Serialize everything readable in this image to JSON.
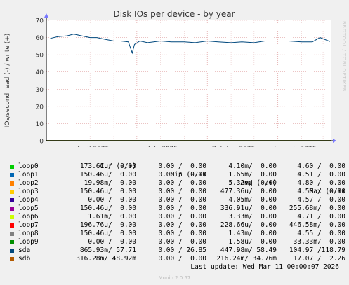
{
  "watermark": "RRDTOOL / TOBI OETIKER",
  "footer": "Munin 2.0.57",
  "last_update": "Last update: Wed Mar 11 00:00:07 2026",
  "legend": {
    "headers": [
      "Cur (-/+)",
      "Min (-/+)",
      "Avg (-/+)",
      "Max (-/+)"
    ],
    "rows": [
      {
        "name": "loop0",
        "color": "#00cc00",
        "cur": "173.61u/  0.00",
        "min": "0.00 /  0.00",
        "avg": "4.10m/  0.00",
        "max": "4.60 /  0.00"
      },
      {
        "name": "loop1",
        "color": "#0066b3",
        "cur": "150.46u/  0.00",
        "min": "0.00 /  0.00",
        "avg": "1.65m/  0.00",
        "max": "4.51 /  0.00"
      },
      {
        "name": "loop2",
        "color": "#ff8000",
        "cur": "19.98m/  0.00",
        "min": "0.00 /  0.00",
        "avg": "5.32m/  0.00",
        "max": "4.80 /  0.00"
      },
      {
        "name": "loop3",
        "color": "#ffcc00",
        "cur": "150.46u/  0.00",
        "min": "0.00 /  0.00",
        "avg": "477.36u/  0.00",
        "max": "4.58 /  0.00"
      },
      {
        "name": "loop4",
        "color": "#330099",
        "cur": "0.00 /  0.00",
        "min": "0.00 /  0.00",
        "avg": "4.05m/  0.00",
        "max": "4.57 /  0.00"
      },
      {
        "name": "loop5",
        "color": "#990099",
        "cur": "150.46u/  0.00",
        "min": "0.00 /  0.00",
        "avg": "336.91u/  0.00",
        "max": "255.68m/  0.00"
      },
      {
        "name": "loop6",
        "color": "#ccff00",
        "cur": "1.61m/  0.00",
        "min": "0.00 /  0.00",
        "avg": "3.33m/  0.00",
        "max": "4.71 /  0.00"
      },
      {
        "name": "loop7",
        "color": "#ff0000",
        "cur": "196.76u/  0.00",
        "min": "0.00 /  0.00",
        "avg": "228.66u/  0.00",
        "max": "446.58m/  0.00"
      },
      {
        "name": "loop8",
        "color": "#808080",
        "cur": "150.46u/  0.00",
        "min": "0.00 /  0.00",
        "avg": "1.43m/  0.00",
        "max": "4.55 /  0.00"
      },
      {
        "name": "loop9",
        "color": "#008f00",
        "cur": "0.00 /  0.00",
        "min": "0.00 /  0.00",
        "avg": "1.58u/  0.00",
        "max": "33.33m/  0.00"
      },
      {
        "name": "sda",
        "color": "#00487d",
        "cur": "865.93m/ 57.71",
        "min": "0.00 / 26.85",
        "avg": "447.98m/ 58.49",
        "max": "104.97 /118.79"
      },
      {
        "name": "sdb",
        "color": "#b35a00",
        "cur": "316.28m/ 48.92m",
        "min": "0.00 /  0.00",
        "avg": "216.24m/ 34.76m",
        "max": "17.07 /  2.26"
      }
    ]
  },
  "chart_data": {
    "type": "line",
    "title": "Disk IOs per device - by year",
    "ylabel": "IOs/second read (-) / write (+)",
    "ylim": [
      -1,
      70
    ],
    "yticks": [
      0,
      10,
      20,
      30,
      40,
      50,
      60,
      70
    ],
    "xlim": [
      "2025-03-05",
      "2026-03-11"
    ],
    "xticks": [
      {
        "date": "2025-04-01",
        "label": "April 2025"
      },
      {
        "date": "2025-07-01",
        "label": "July 2025"
      },
      {
        "date": "2025-10-01",
        "label": "October 2025"
      },
      {
        "date": "2026-01-01",
        "label": "January 2026"
      }
    ],
    "grid": true,
    "series": [
      {
        "name": "sda",
        "color": "#00487d",
        "x": [
          "2025-03-10",
          "2025-03-20",
          "2025-04-01",
          "2025-04-10",
          "2025-04-20",
          "2025-05-01",
          "2025-05-10",
          "2025-05-20",
          "2025-06-01",
          "2025-06-10",
          "2025-06-20",
          "2025-06-25",
          "2025-06-28",
          "2025-07-05",
          "2025-07-15",
          "2025-08-01",
          "2025-08-15",
          "2025-09-01",
          "2025-09-15",
          "2025-10-01",
          "2025-10-15",
          "2025-11-01",
          "2025-11-15",
          "2025-12-01",
          "2025-12-15",
          "2026-01-01",
          "2026-01-15",
          "2026-02-01",
          "2026-02-15",
          "2026-02-25",
          "2026-03-10"
        ],
        "values": [
          59.5,
          60.5,
          61,
          62,
          61,
          60,
          60,
          59,
          58,
          58,
          57.5,
          51,
          56,
          58,
          57,
          58,
          57.5,
          57.5,
          57,
          58,
          57.5,
          57,
          57.5,
          57,
          58,
          58,
          58,
          57.5,
          57.5,
          60,
          57.7
        ]
      },
      {
        "name": "sdb",
        "color": "#b35a00",
        "x": [
          "2025-03-05",
          "2026-03-11"
        ],
        "values": [
          0.05,
          0.05
        ]
      }
    ]
  }
}
